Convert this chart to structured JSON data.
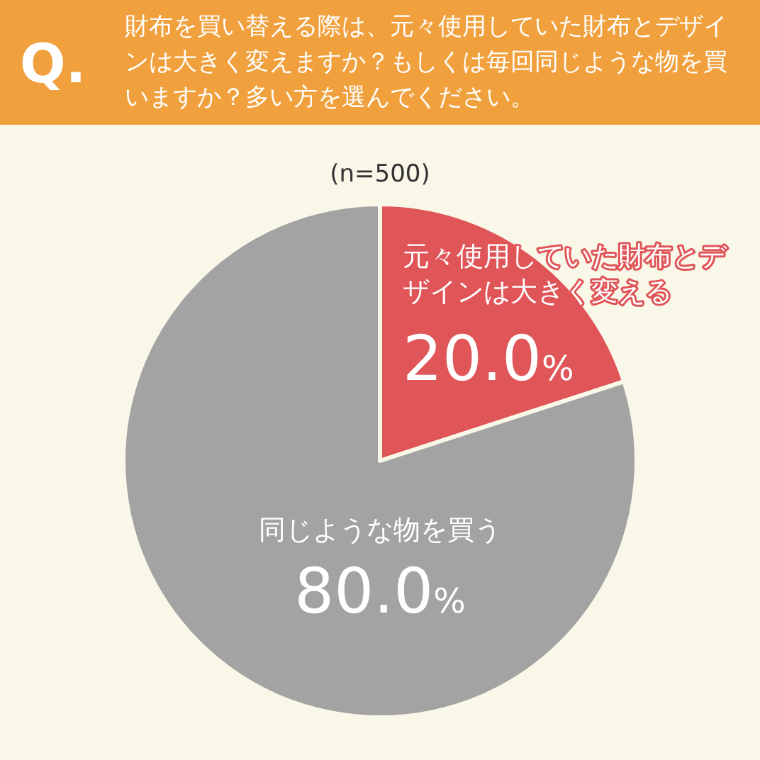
{
  "chart_data": {
    "type": "pie",
    "title": "財布を買い替える際は、元々使用していた財布とデザインは大きく変えますか？もしくは毎回同じような物を買いますか？多い方を選んでください。",
    "subtitle": "(n=500)",
    "annotations": [
      "Q."
    ],
    "categories": [
      "元々使用していた財布とデザインは大きく変える",
      "同じような物を買う"
    ],
    "values": [
      20,
      80
    ],
    "colors": [
      "#e05558",
      "#a3a3a3"
    ],
    "value_labels": [
      "20.0%",
      "80.0%"
    ]
  }
}
